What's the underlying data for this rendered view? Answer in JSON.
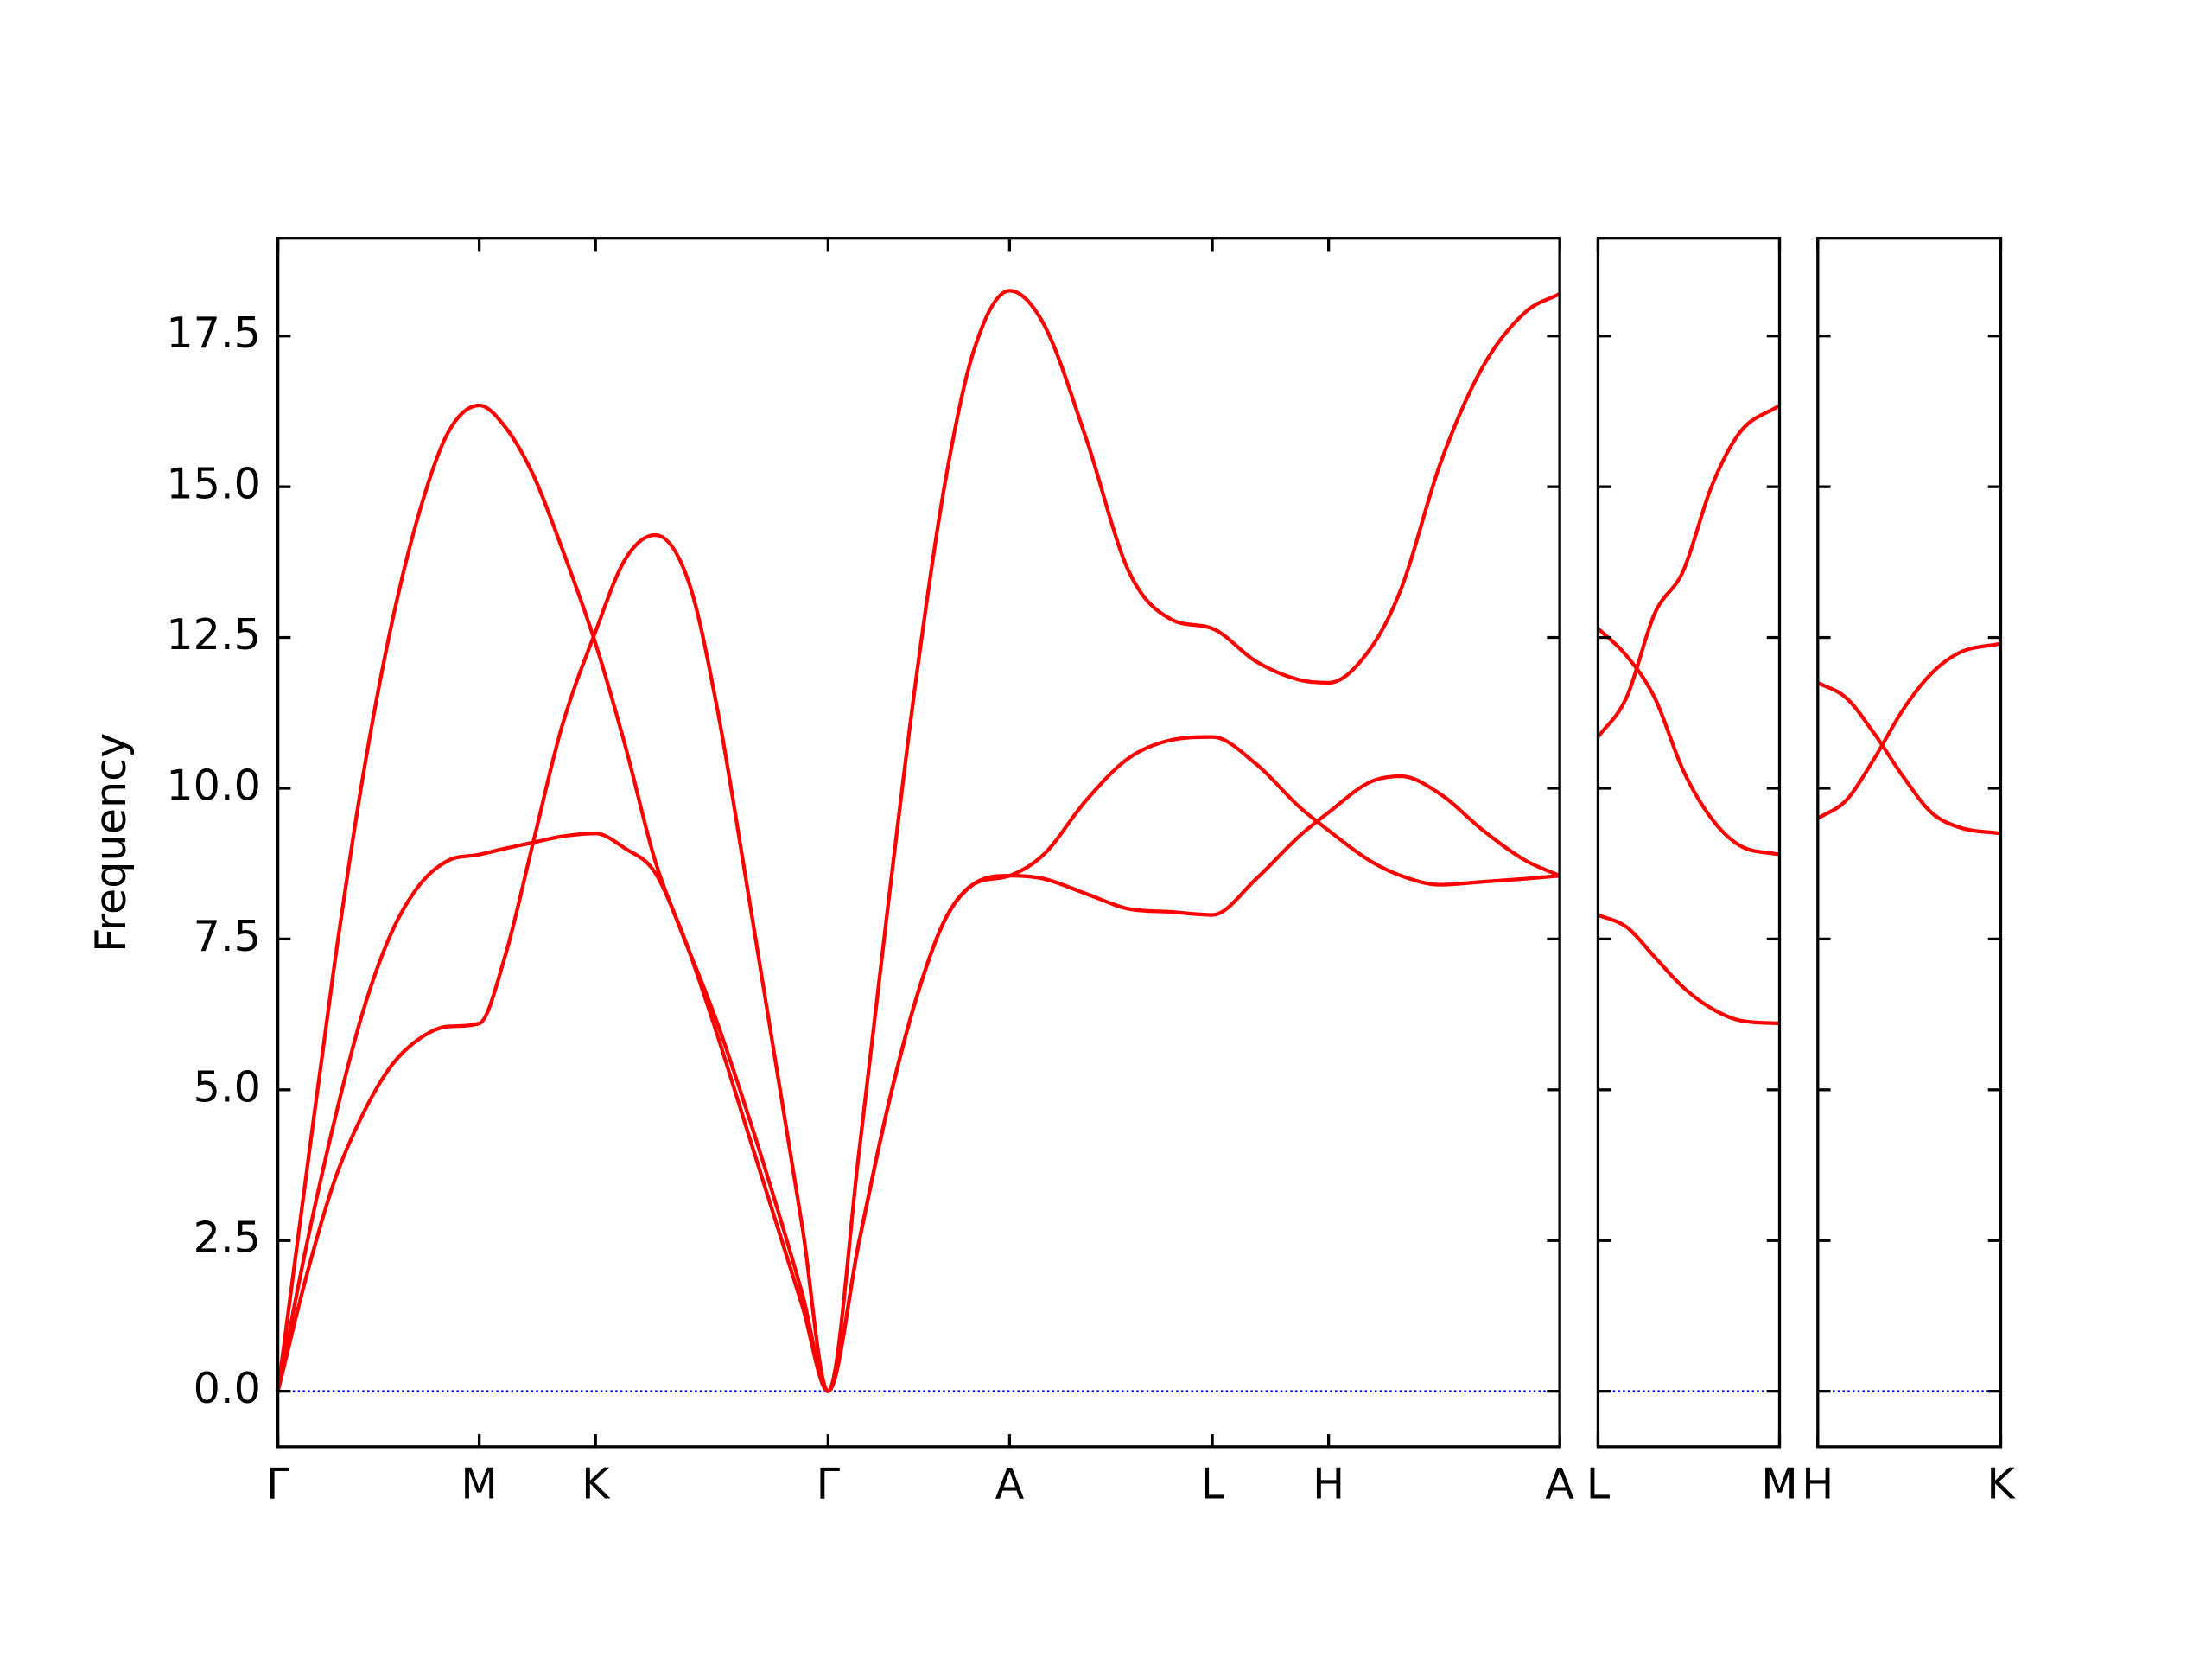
{
  "chart_data": [
    {
      "type": "line",
      "ylabel": "Frequency",
      "x": [
        0,
        0.2,
        0.4,
        0.6,
        0.8,
        1.0,
        1.2,
        1.42,
        1.6,
        1.8,
        2.0,
        2.24,
        2.45,
        2.66,
        2.9,
        3.1,
        3.3,
        3.5,
        3.7,
        3.88,
        4.1,
        4.3,
        4.5,
        4.7,
        4.9,
        5.16,
        5.4,
        5.7,
        6.0,
        6.3,
        6.59,
        6.9,
        7.2,
        7.41,
        7.7,
        7.92,
        8.2,
        8.5,
        8.8,
        9.04
      ],
      "series": [
        {
          "color": "#ff0000",
          "values": [
            0,
            3.59,
            7.1,
            10.2,
            12.7,
            14.6,
            15.9,
            16.35,
            16.0,
            15.2,
            14.0,
            12.4,
            10.7,
            8.8,
            7.3,
            5.9,
            4.4,
            2.9,
            1.4,
            0,
            4.0,
            8.0,
            11.8,
            15.0,
            17.2,
            18.25,
            17.7,
            15.8,
            13.6,
            12.8,
            12.65,
            12.1,
            11.8,
            11.75,
            12.3,
            13.3,
            15.4,
            17.0,
            17.9,
            18.2
          ]
        },
        {
          "color": "#ff0000",
          "values": [
            0,
            2.4,
            4.5,
            6.3,
            7.6,
            8.4,
            8.8,
            8.9,
            9.0,
            9.1,
            9.2,
            9.25,
            9.0,
            8.6,
            7.3,
            6.1,
            4.7,
            3.2,
            1.6,
            0,
            2.5,
            4.7,
            6.5,
            7.8,
            8.4,
            8.55,
            8.9,
            9.8,
            10.5,
            10.8,
            10.85,
            10.4,
            9.7,
            9.3,
            8.8,
            8.55,
            8.4,
            8.45,
            8.5,
            8.55
          ]
        },
        {
          "color": "#ff0000",
          "values": [
            0,
            1.9,
            3.5,
            4.6,
            5.4,
            5.85,
            6.05,
            6.1,
            7.2,
            9.1,
            11.0,
            12.6,
            13.8,
            14.2,
            13.4,
            11.3,
            8.5,
            5.6,
            2.7,
            0,
            2.5,
            4.7,
            6.5,
            7.8,
            8.4,
            8.55,
            8.5,
            8.25,
            8.0,
            7.95,
            7.9,
            8.5,
            9.2,
            9.6,
            10.1,
            10.2,
            9.9,
            9.3,
            8.8,
            8.55
          ]
        }
      ],
      "xlim": [
        0,
        9.04
      ],
      "xticks": [
        {
          "value": 0,
          "label": "Γ"
        },
        {
          "value": 1.42,
          "label": "M"
        },
        {
          "value": 2.24,
          "label": "K"
        },
        {
          "value": 3.88,
          "label": "Γ"
        },
        {
          "value": 5.16,
          "label": "A"
        },
        {
          "value": 6.59,
          "label": "L"
        },
        {
          "value": 7.41,
          "label": "H"
        },
        {
          "value": 9.04,
          "label": "A"
        }
      ],
      "ylim": [
        -0.92,
        19.12
      ],
      "yticks": [
        {
          "value": 0,
          "label": "0.0"
        },
        {
          "value": 2.5,
          "label": "2.5"
        },
        {
          "value": 5,
          "label": "5.0"
        },
        {
          "value": 7.5,
          "label": "7.5"
        },
        {
          "value": 10,
          "label": "10.0"
        },
        {
          "value": 12.5,
          "label": "12.5"
        },
        {
          "value": 15,
          "label": "15.0"
        },
        {
          "value": 17.5,
          "label": "17.5"
        }
      ],
      "hline": {
        "value": 0,
        "color": "#0000ff",
        "style": "dotted"
      }
    },
    {
      "type": "line",
      "x": [
        0,
        0.2,
        0.4,
        0.6,
        0.8,
        1.0,
        1.28
      ],
      "series": [
        {
          "color": "#ff0000",
          "values": [
            10.85,
            11.5,
            12.9,
            13.6,
            15.0,
            15.9,
            16.35
          ]
        },
        {
          "color": "#ff0000",
          "values": [
            12.65,
            12.2,
            11.5,
            10.3,
            9.5,
            9.05,
            8.9
          ]
        },
        {
          "color": "#ff0000",
          "values": [
            7.9,
            7.7,
            7.2,
            6.7,
            6.35,
            6.15,
            6.1
          ]
        }
      ],
      "xlim": [
        0,
        1.28
      ],
      "xticks": [
        {
          "value": 0,
          "label": "L"
        },
        {
          "value": 1.28,
          "label": "M"
        }
      ],
      "ylim": [
        -0.92,
        19.12
      ],
      "sharey": true,
      "hline": {
        "value": 0,
        "color": "#0000ff",
        "style": "dotted"
      }
    },
    {
      "type": "line",
      "x": [
        0,
        0.2,
        0.4,
        0.6,
        0.8,
        1.0,
        1.29
      ],
      "series": [
        {
          "color": "#ff0000",
          "values": [
            11.75,
            11.5,
            10.9,
            10.2,
            9.6,
            9.35,
            9.25
          ]
        },
        {
          "color": "#ff0000",
          "values": [
            9.5,
            9.8,
            10.5,
            11.3,
            11.9,
            12.25,
            12.4
          ]
        }
      ],
      "xlim": [
        0,
        1.29
      ],
      "xticks": [
        {
          "value": 0,
          "label": "H"
        },
        {
          "value": 1.29,
          "label": "K"
        }
      ],
      "ylim": [
        -0.92,
        19.12
      ],
      "sharey": true,
      "hline": {
        "value": 0,
        "color": "#0000ff",
        "style": "dotted"
      }
    }
  ]
}
